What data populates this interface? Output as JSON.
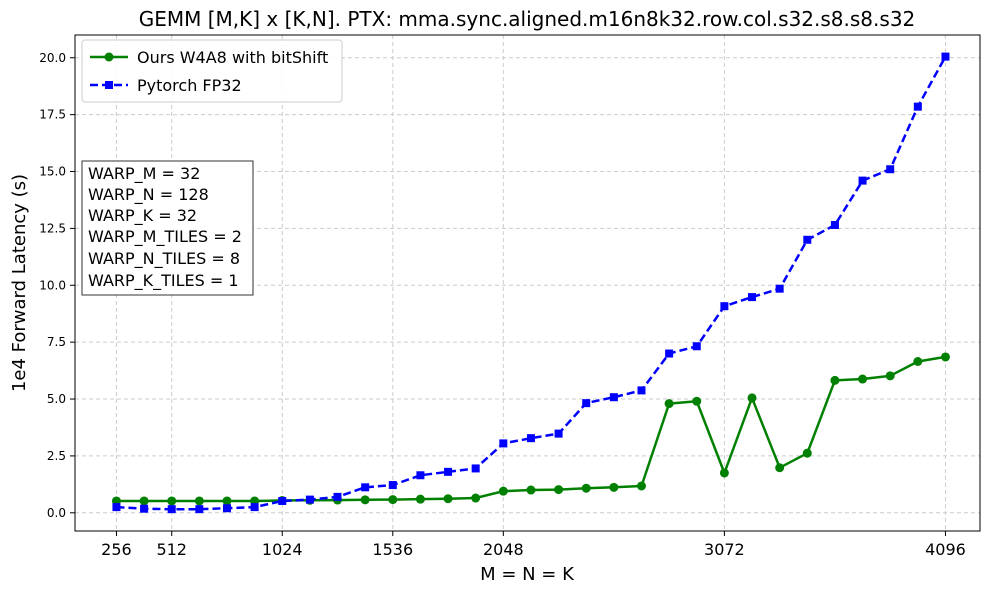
{
  "chart_data": {
    "type": "line",
    "title": "GEMM [M,K] x [K,N]. PTX: mma.sync.aligned.m16n8k32.row.col.s32.s8.s8.s32",
    "xlabel": "M = N = K",
    "ylabel": "1e4 Forward Latency (s)",
    "xlim": [
      64,
      4256
    ],
    "ylim": [
      -0.8,
      21.0
    ],
    "xticks": [
      256,
      512,
      1024,
      1536,
      2048,
      3072,
      4096
    ],
    "yticks": [
      0.0,
      2.5,
      5.0,
      7.5,
      10.0,
      12.5,
      15.0,
      17.5,
      20.0
    ],
    "grid": true,
    "legend_position": "top-left",
    "x": [
      256,
      384,
      512,
      640,
      768,
      896,
      1024,
      1152,
      1280,
      1408,
      1536,
      1664,
      1792,
      1920,
      2048,
      2176,
      2304,
      2432,
      2560,
      2688,
      2816,
      2944,
      3072,
      3200,
      3328,
      3456,
      3584,
      3712,
      3840,
      3968,
      4096
    ],
    "series": [
      {
        "name": "Ours W4A8 with bitShift",
        "color": "#008000",
        "marker": "circle",
        "linestyle": "solid",
        "values": [
          0.52,
          0.52,
          0.52,
          0.52,
          0.52,
          0.52,
          0.54,
          0.55,
          0.56,
          0.57,
          0.58,
          0.6,
          0.62,
          0.65,
          0.95,
          1.0,
          1.02,
          1.08,
          1.12,
          1.18,
          4.8,
          4.9,
          1.75,
          5.05,
          1.98,
          2.62,
          5.82,
          5.88,
          6.02,
          6.65,
          6.85
        ]
      },
      {
        "name": "Pytorch FP32",
        "color": "#0000ff",
        "marker": "square",
        "linestyle": "dashed",
        "values": [
          0.25,
          0.18,
          0.16,
          0.16,
          0.2,
          0.25,
          0.52,
          0.58,
          0.7,
          1.12,
          1.22,
          1.65,
          1.8,
          1.95,
          3.05,
          3.28,
          3.48,
          4.82,
          5.08,
          5.38,
          7.0,
          7.32,
          9.08,
          9.48,
          9.85,
          12.0,
          12.65,
          14.6,
          15.1,
          17.85,
          20.05
        ]
      }
    ],
    "annotation": {
      "lines": [
        "WARP_M = 32",
        "WARP_N = 128",
        "WARP_K = 32",
        "WARP_M_TILES = 2",
        "WARP_N_TILES = 8",
        "WARP_K_TILES = 1"
      ]
    }
  }
}
